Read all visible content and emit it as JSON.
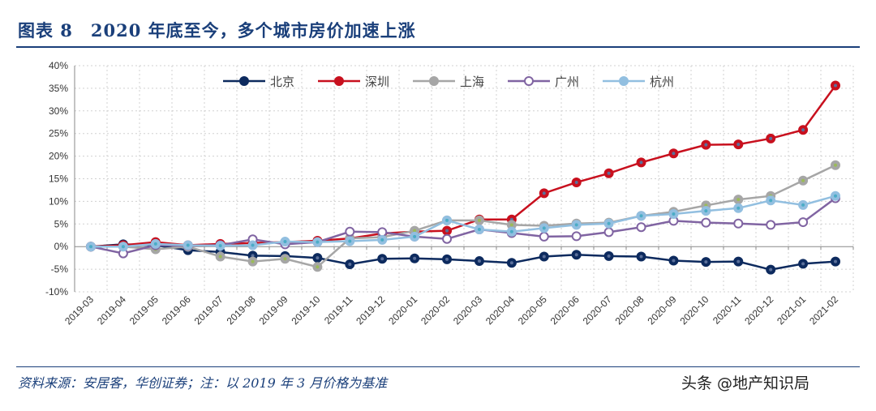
{
  "title": "图表 8　2020 年底至今，多个城市房价加速上涨",
  "source": "资料来源：安居客，华创证券；注：以 2019 年 3 月价格为基准",
  "watermark": "头条 @地产知识局",
  "chart_data": {
    "type": "line",
    "title": "",
    "xlabel": "",
    "ylabel": "",
    "ylim": [
      -10,
      40
    ],
    "yticks": [
      "-10%",
      "-5%",
      "0%",
      "5%",
      "10%",
      "15%",
      "20%",
      "25%",
      "30%",
      "35%",
      "40%"
    ],
    "grid": true,
    "legend_position": "top",
    "x": [
      "2019-03",
      "2019-04",
      "2019-05",
      "2019-06",
      "2019-07",
      "2019-08",
      "2019-09",
      "2019-10",
      "2019-11",
      "2019-12",
      "2020-01",
      "2020-02",
      "2020-03",
      "2020-04",
      "2020-05",
      "2020-06",
      "2020-07",
      "2020-08",
      "2020-09",
      "2020-10",
      "2020-11",
      "2020-12",
      "2021-01",
      "2021-02"
    ],
    "series": [
      {
        "name": "北京",
        "color": "#0d2a5e",
        "marker": "filled",
        "values": [
          0,
          0.5,
          0.3,
          -0.8,
          -1.2,
          -2,
          -2.1,
          -2.5,
          -3.9,
          -2.7,
          -2.6,
          -2.8,
          -3.2,
          -3.6,
          -2.2,
          -1.8,
          -2.1,
          -2.2,
          -3.1,
          -3.4,
          -3.3,
          -5.1,
          -3.8,
          -3.3
        ]
      },
      {
        "name": "深圳",
        "color": "#c8101e",
        "marker": "filled",
        "values": [
          0,
          0.3,
          1.0,
          0.3,
          0.6,
          0.8,
          1.0,
          1.3,
          1.8,
          2.9,
          3.3,
          3.5,
          6.0,
          6.0,
          11.8,
          14.2,
          16.2,
          18.6,
          20.6,
          22.5,
          22.6,
          23.9,
          25.8,
          35.6
        ]
      },
      {
        "name": "上海",
        "color": "#a6a6a6",
        "marker": "filled",
        "values": [
          0,
          0,
          -0.6,
          0,
          -2.2,
          -3.3,
          -2.7,
          -4.5,
          1.8,
          2.1,
          3.5,
          5.8,
          5.8,
          4.8,
          4.6,
          5.1,
          5.3,
          6.8,
          7.7,
          9.1,
          10.4,
          11.2,
          14.6,
          18.0
        ]
      },
      {
        "name": "广州",
        "color": "#8064a2",
        "marker": "hollow",
        "values": [
          0,
          -1.5,
          0.3,
          0.2,
          0.3,
          1.6,
          0.5,
          1.0,
          3.3,
          3.2,
          2.2,
          1.7,
          3.8,
          3.0,
          2.2,
          2.3,
          3.2,
          4.3,
          5.7,
          5.3,
          5.1,
          4.8,
          5.4,
          10.7
        ]
      },
      {
        "name": "杭州",
        "color": "#92bfe0",
        "marker": "filled",
        "values": [
          0,
          0,
          0.6,
          0.3,
          0.2,
          0.3,
          1.1,
          1.0,
          1.2,
          1.5,
          2.2,
          5.8,
          3.8,
          3.3,
          4.1,
          4.8,
          5.1,
          6.8,
          7.2,
          7.9,
          8.5,
          10.2,
          9.2,
          11.2
        ]
      }
    ]
  }
}
